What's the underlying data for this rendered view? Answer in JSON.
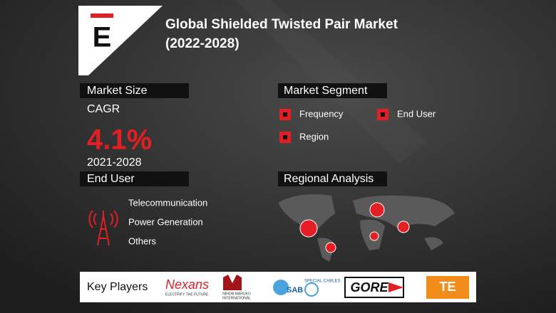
{
  "header": {
    "title_line1": "Global Shielded Twisted Pair Market",
    "title_line2": "(2022-2028)",
    "logo_letter": "E"
  },
  "market_size": {
    "heading": "Market Size",
    "metric": "CAGR",
    "value": "4.1%",
    "period": "2021-2028"
  },
  "end_user": {
    "heading": "End User",
    "items": [
      "Telecommunication",
      "Power Generation",
      "Others"
    ]
  },
  "market_segment": {
    "heading": "Market Segment",
    "items": [
      "Frequency",
      "End User",
      "Region"
    ]
  },
  "regional_analysis": {
    "heading": "Regional Analysis"
  },
  "key_players": {
    "heading": "Key Players",
    "logos": [
      {
        "name": "Nexans",
        "tagline": "ELECTRIFY THE FUTURE"
      },
      {
        "name": "NIHON MARUKO",
        "tagline": "INTERNATIONAL"
      },
      {
        "name": "SAB",
        "tagline": "SPECIAL CABLES"
      },
      {
        "name": "GORE"
      },
      {
        "name": "TE"
      }
    ]
  }
}
